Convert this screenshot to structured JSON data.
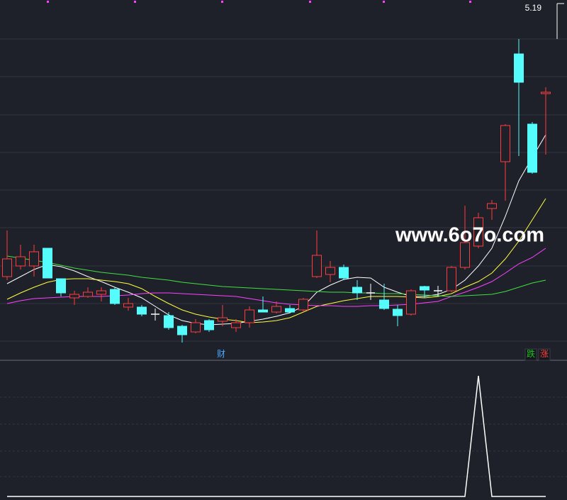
{
  "chart_data": [
    {
      "type": "candlestick",
      "ylim": [
        2.94,
        5.465
      ],
      "open": [
        3.515,
        3.59,
        3.59,
        3.715,
        3.5,
        3.365,
        3.375,
        3.39,
        3.425,
        3.3,
        3.3,
        3.25,
        3.24,
        3.165,
        3.125,
        3.205,
        3.2,
        3.155,
        3.19,
        3.28,
        3.265,
        3.29,
        3.28,
        3.515,
        3.53,
        3.58,
        3.44,
        3.4,
        3.35,
        3.285,
        3.25,
        3.445,
        3.415,
        3.415,
        3.58,
        3.73,
        3.995,
        4.325,
        5.085,
        4.59,
        4.805
      ],
      "high": [
        3.84,
        3.74,
        3.74,
        3.715,
        3.5,
        3.415,
        3.44,
        3.44,
        3.44,
        3.365,
        3.315,
        3.29,
        3.265,
        3.175,
        3.215,
        3.215,
        3.315,
        3.215,
        3.305,
        3.375,
        3.34,
        3.315,
        3.365,
        3.84,
        3.625,
        3.6,
        3.49,
        3.465,
        3.465,
        3.315,
        3.425,
        3.45,
        3.45,
        3.59,
        4.015,
        3.965,
        4.055,
        4.59,
        5.19,
        4.605,
        4.85
      ],
      "low": [
        3.49,
        3.565,
        3.515,
        3.505,
        3.375,
        3.315,
        3.365,
        3.34,
        3.315,
        3.275,
        3.235,
        3.205,
        3.14,
        3.05,
        3.115,
        3.125,
        3.165,
        3.125,
        3.155,
        3.265,
        3.255,
        3.255,
        3.265,
        3.505,
        3.475,
        3.49,
        3.35,
        3.35,
        3.28,
        3.165,
        3.24,
        3.365,
        3.375,
        3.405,
        3.565,
        3.715,
        3.915,
        4.05,
        4.365,
        4.24,
        4.375
      ],
      "close": [
        3.64,
        3.655,
        3.69,
        3.505,
        3.4,
        3.39,
        3.405,
        3.415,
        3.325,
        3.325,
        3.25,
        3.25,
        3.155,
        3.105,
        3.19,
        3.14,
        3.225,
        3.19,
        3.28,
        3.265,
        3.305,
        3.265,
        3.355,
        3.665,
        3.58,
        3.505,
        3.4,
        3.4,
        3.29,
        3.24,
        3.415,
        3.42,
        3.415,
        3.58,
        3.755,
        3.93,
        4.03,
        4.58,
        4.885,
        4.25,
        4.815
      ],
      "up_color": "#ff3c3c",
      "down_color": "#54fcfc",
      "doji_color": "#ffffff",
      "series": [
        {
          "color": "#ffffff",
          "values": [
            3.465,
            3.515,
            3.565,
            3.6,
            3.585,
            3.555,
            3.515,
            3.48,
            3.44,
            3.405,
            3.365,
            3.305,
            3.245,
            3.205,
            3.185,
            3.175,
            3.18,
            3.185,
            3.2,
            3.215,
            3.235,
            3.26,
            3.305,
            3.405,
            3.455,
            3.495,
            3.51,
            3.505,
            3.44,
            3.405,
            3.375,
            3.375,
            3.39,
            3.425,
            3.49,
            3.59,
            3.715,
            3.94,
            4.19,
            4.355,
            4.515
          ]
        },
        {
          "color": "#ffff40",
          "values": [
            3.355,
            3.4,
            3.44,
            3.475,
            3.495,
            3.5,
            3.5,
            3.49,
            3.48,
            3.465,
            3.43,
            3.375,
            3.325,
            3.28,
            3.25,
            3.23,
            3.215,
            3.205,
            3.19,
            3.195,
            3.205,
            3.225,
            3.265,
            3.305,
            3.325,
            3.345,
            3.36,
            3.375,
            3.375,
            3.375,
            3.37,
            3.365,
            3.375,
            3.395,
            3.44,
            3.48,
            3.54,
            3.64,
            3.765,
            3.915,
            4.065
          ]
        },
        {
          "color": "#ff40ff",
          "values": [
            3.325,
            3.345,
            3.36,
            3.365,
            3.37,
            3.375,
            3.375,
            3.375,
            3.38,
            3.385,
            3.395,
            3.4,
            3.4,
            3.395,
            3.39,
            3.385,
            3.38,
            3.375,
            3.36,
            3.345,
            3.33,
            3.32,
            3.315,
            3.31,
            3.31,
            3.305,
            3.305,
            3.31,
            3.31,
            3.315,
            3.32,
            3.33,
            3.34,
            3.375,
            3.405,
            3.44,
            3.48,
            3.54,
            3.605,
            3.65,
            3.715
          ]
        },
        {
          "color": "#40e040",
          "values": [
            3.66,
            3.645,
            3.63,
            3.615,
            3.595,
            3.575,
            3.56,
            3.545,
            3.535,
            3.525,
            3.51,
            3.5,
            3.49,
            3.475,
            3.465,
            3.455,
            3.445,
            3.44,
            3.435,
            3.43,
            3.425,
            3.42,
            3.415,
            3.41,
            3.405,
            3.405,
            3.4,
            3.4,
            3.395,
            3.395,
            3.39,
            3.385,
            3.38,
            3.375,
            3.38,
            3.385,
            3.39,
            3.41,
            3.44,
            3.47,
            3.49
          ]
        }
      ],
      "annotation": "5.19",
      "event": {
        "label": "财",
        "index": 16
      },
      "legend": [
        {
          "label": "跌",
          "color": "#20c020"
        },
        {
          "label": "涨",
          "color": "#ff4040"
        }
      ],
      "watermark": "www.6o7o.com"
    },
    {
      "type": "line",
      "ylim": [
        0,
        1
      ],
      "color": "#ffffff",
      "values": [
        0,
        0,
        0,
        0,
        0,
        0,
        0,
        0,
        0,
        0,
        0,
        0,
        0,
        0,
        0,
        0,
        0,
        0,
        0,
        0,
        0,
        0,
        0,
        0,
        0,
        0,
        0,
        0,
        0,
        0,
        0,
        0,
        0,
        0,
        0,
        1,
        0,
        0,
        0,
        0,
        0
      ]
    }
  ]
}
